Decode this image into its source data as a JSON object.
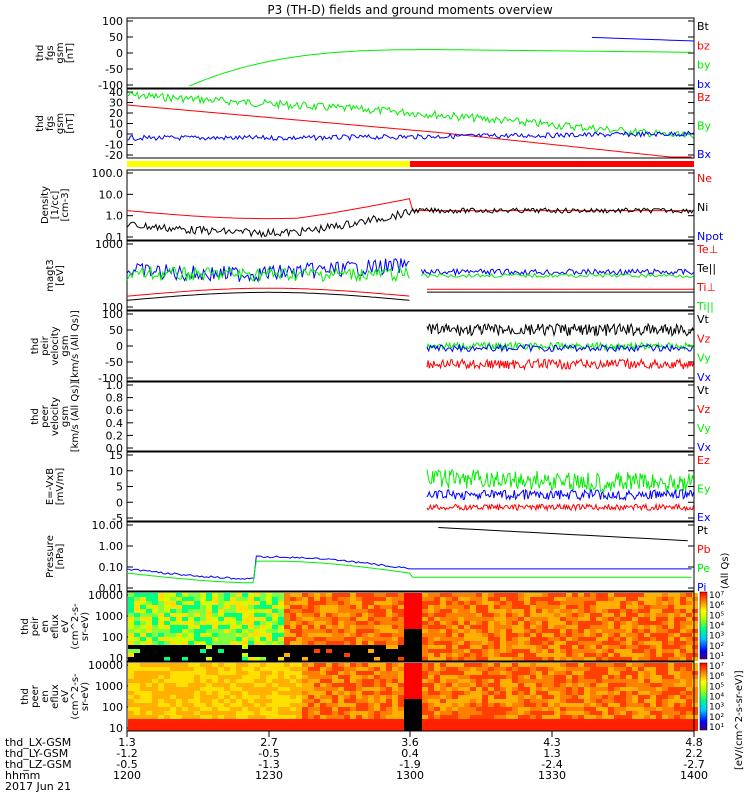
{
  "title": "P3 (TH-D) fields and ground moments overview",
  "colors": {
    "black": "#000000",
    "red": "#ff0000",
    "green": "#00ee00",
    "blue": "#0000ff",
    "yellow": "#ffff00"
  },
  "chart_data": {
    "type": "line",
    "x_axis": {
      "hhmm_ticks": [
        "1200",
        "1230",
        "1300",
        "1330",
        "1400"
      ],
      "rows": [
        {
          "label": "thd_LX-GSM",
          "values": [
            "1.3",
            "2.7",
            "3.6",
            "4.3",
            "4.8"
          ]
        },
        {
          "label": "thd_LY-GSM",
          "values": [
            "-1.2",
            "-0.5",
            "0.4",
            "1.3",
            "2.2"
          ]
        },
        {
          "label": "thd_LZ-GSM",
          "values": [
            "-0.5",
            "-1.3",
            "-1.9",
            "-2.4",
            "-2.7"
          ]
        },
        {
          "label": "hhmm",
          "values": [
            "1200",
            "1230",
            "1300",
            "1330",
            "1400"
          ]
        }
      ],
      "date": "2017 Jun 21"
    },
    "panels": [
      {
        "id": "fgs-gsm",
        "ylabel": [
          "thd",
          "fgs",
          "gsm",
          "[nT]"
        ],
        "ticks": [
          "100",
          "50",
          "0",
          "-50",
          "-100"
        ],
        "ylim": [
          -100,
          100
        ],
        "legend": [
          {
            "text": "Bt",
            "color": "#000000"
          },
          {
            "text": "bz",
            "color": "#ff0000"
          },
          {
            "text": "by",
            "color": "#00ee00"
          },
          {
            "text": "bx",
            "color": "#0000ff"
          }
        ]
      },
      {
        "id": "fgs-dsl",
        "ylabel": [
          "thd",
          "fgs",
          "gsm",
          "[nT]"
        ],
        "ticks": [
          "40",
          "30",
          "20",
          "10",
          "0",
          "-10",
          "-20"
        ],
        "ylim": [
          -20,
          40
        ],
        "legend": [
          {
            "text": "Bz",
            "color": "#ff0000"
          },
          {
            "text": "By",
            "color": "#00ee00"
          },
          {
            "text": "Bx",
            "color": "#0000ff"
          }
        ]
      },
      {
        "id": "density",
        "ylabel": [
          "Density",
          "[1/cc]",
          "[cm-3]"
        ],
        "ticks": [
          "100.0",
          "10.0",
          "1.0",
          "0.1"
        ],
        "log": true,
        "legend": [
          {
            "text": "Ne",
            "color": "#ff0000"
          },
          {
            "text": "Ni",
            "color": "#000000"
          },
          {
            "text": "Npot",
            "color": "#0000ff"
          }
        ]
      },
      {
        "id": "temperature",
        "ylabel": [
          "magt3",
          "[eV]"
        ],
        "ticks": [
          "1000",
          "100"
        ],
        "log": true,
        "legend": [
          {
            "text": "Te⊥",
            "color": "#ff0000"
          },
          {
            "text": "Te||",
            "color": "#000000"
          },
          {
            "text": "Ti⊥",
            "color": "#ff0000"
          },
          {
            "text": "Ti||",
            "color": "#00ee00"
          }
        ]
      },
      {
        "id": "peir-velocity",
        "ylabel": [
          "thd",
          "peir",
          "velocity",
          "gsm",
          "[km/s (All Qs)]"
        ],
        "ticks": [
          "100",
          "50",
          "0",
          "-50",
          "-100"
        ],
        "ylim": [
          -100,
          100
        ],
        "legend": [
          {
            "text": "Vt",
            "color": "#000000"
          },
          {
            "text": "Vz",
            "color": "#ff0000"
          },
          {
            "text": "Vy",
            "color": "#00ee00"
          },
          {
            "text": "Vx",
            "color": "#0000ff"
          }
        ]
      },
      {
        "id": "peer-velocity",
        "ylabel": [
          "thd",
          "peer",
          "velocity",
          "gsm",
          "[km/s (All Qs)]"
        ],
        "ticks": [
          "1.0",
          "0.8",
          "0.6",
          "0.4",
          "0.2",
          "0.0"
        ],
        "ylim": [
          0,
          1
        ],
        "legend": [
          {
            "text": "Vt",
            "color": "#000000"
          },
          {
            "text": "Vz",
            "color": "#ff0000"
          },
          {
            "text": "Vy",
            "color": "#00ee00"
          },
          {
            "text": "Vx",
            "color": "#0000ff"
          }
        ]
      },
      {
        "id": "efield",
        "ylabel": [
          "E=-VxB",
          "[mV/m]"
        ],
        "ticks": [
          "15",
          "10",
          "5",
          "0",
          "-5"
        ],
        "ylim": [
          -5,
          15
        ],
        "legend": [
          {
            "text": "Ez",
            "color": "#ff0000"
          },
          {
            "text": "Ey",
            "color": "#00ee00"
          },
          {
            "text": "Ex",
            "color": "#0000ff"
          }
        ]
      },
      {
        "id": "pressure",
        "ylabel": [
          "Pressure",
          "[nPa]"
        ],
        "ticks": [
          "10.00",
          "1.00",
          "0.10",
          "0.01"
        ],
        "log": true,
        "legend": [
          {
            "text": "Pt",
            "color": "#000000"
          },
          {
            "text": "Pb",
            "color": "#ff0000"
          },
          {
            "text": "Pe",
            "color": "#00ee00"
          },
          {
            "text": "Pi",
            "color": "#0000ff"
          }
        ],
        "side_note": "(All Qs)"
      },
      {
        "id": "peir-eflux",
        "type": "heatmap",
        "ylabel": [
          "thd",
          "peir",
          "en",
          "eflux",
          "eV",
          "(cm^2-s-",
          "sr-eV)"
        ],
        "ticks": [
          "10000",
          "1000",
          "100",
          "10"
        ]
      },
      {
        "id": "peer-eflux",
        "type": "heatmap",
        "ylabel": [
          "thd",
          "peer",
          "en",
          "eflux",
          "eV",
          "(cm^2-s-",
          "sr-eV)"
        ],
        "ticks": [
          "10000",
          "1000",
          "100",
          "10"
        ]
      }
    ],
    "colorbar": {
      "ticks": [
        "10⁷",
        "10⁶",
        "10⁵",
        "10⁴",
        "10³",
        "10²",
        "10¹"
      ],
      "label": "[eV/(cm^2-s-sr-eV)]",
      "label2": "[eV/(cm^2-s-sr-eV)]"
    },
    "mode_bar": {
      "segments": [
        {
          "from": "1200",
          "to": "1300",
          "color": "#ffff00"
        },
        {
          "from": "1300",
          "to": "1400",
          "color": "#ff0000"
        }
      ]
    }
  }
}
